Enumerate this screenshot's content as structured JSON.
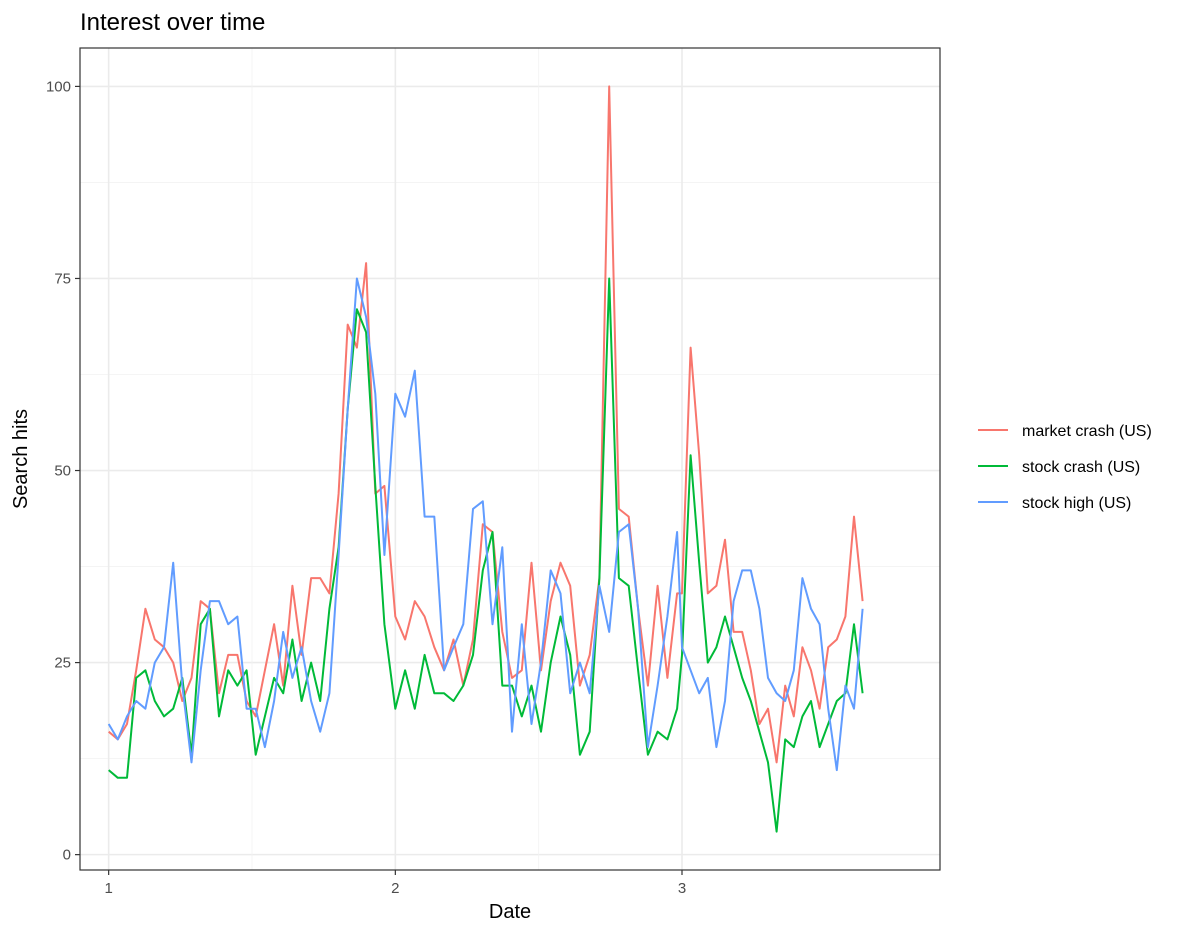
{
  "chart_data": {
    "type": "line",
    "title": "Interest over time",
    "xlabel": "Date",
    "ylabel": "Search hits",
    "xlim": [
      0.9,
      3.9
    ],
    "ylim": [
      -2,
      105
    ],
    "x_ticks": [
      1,
      2,
      3
    ],
    "y_ticks": [
      0,
      25,
      50,
      75,
      100
    ],
    "x_tick_labels": [
      "1",
      "2",
      "3"
    ],
    "y_tick_labels": [
      "0",
      "25",
      "50",
      "75",
      "100"
    ],
    "grid": true,
    "legend_position": "right",
    "series": [
      {
        "name": "market crash (US)",
        "color": "#F8766D",
        "points": [
          [
            1.0,
            16
          ],
          [
            1.032,
            15
          ],
          [
            1.064,
            17
          ],
          [
            1.096,
            24
          ],
          [
            1.128,
            32
          ],
          [
            1.161,
            28
          ],
          [
            1.193,
            27
          ],
          [
            1.225,
            25
          ],
          [
            1.257,
            20
          ],
          [
            1.289,
            23
          ],
          [
            1.321,
            33
          ],
          [
            1.353,
            32
          ],
          [
            1.385,
            21
          ],
          [
            1.417,
            26
          ],
          [
            1.449,
            26
          ],
          [
            1.481,
            20
          ],
          [
            1.513,
            18
          ],
          [
            1.545,
            24
          ],
          [
            1.577,
            30
          ],
          [
            1.609,
            22
          ],
          [
            1.641,
            35
          ],
          [
            1.673,
            26
          ],
          [
            1.706,
            36
          ],
          [
            1.738,
            36
          ],
          [
            1.77,
            34
          ],
          [
            1.802,
            47
          ],
          [
            1.834,
            69
          ],
          [
            1.866,
            66
          ],
          [
            1.898,
            77
          ],
          [
            1.93,
            47
          ],
          [
            1.962,
            48
          ],
          [
            2.0,
            31
          ],
          [
            2.034,
            28
          ],
          [
            2.068,
            33
          ],
          [
            2.102,
            31
          ],
          [
            2.136,
            27
          ],
          [
            2.17,
            24
          ],
          [
            2.203,
            28
          ],
          [
            2.237,
            22
          ],
          [
            2.271,
            28
          ],
          [
            2.305,
            43
          ],
          [
            2.339,
            42
          ],
          [
            2.373,
            29
          ],
          [
            2.407,
            23
          ],
          [
            2.441,
            24
          ],
          [
            2.475,
            38
          ],
          [
            2.508,
            24
          ],
          [
            2.542,
            33
          ],
          [
            2.576,
            38
          ],
          [
            2.61,
            35
          ],
          [
            2.644,
            22
          ],
          [
            2.678,
            26
          ],
          [
            2.712,
            36
          ],
          [
            2.746,
            100
          ],
          [
            2.78,
            45
          ],
          [
            2.814,
            44
          ],
          [
            2.847,
            32
          ],
          [
            2.881,
            22
          ],
          [
            2.915,
            35
          ],
          [
            2.949,
            23
          ],
          [
            2.983,
            34
          ],
          [
            3.0,
            34
          ],
          [
            3.03,
            66
          ],
          [
            3.06,
            52
          ],
          [
            3.09,
            34
          ],
          [
            3.12,
            35
          ],
          [
            3.15,
            41
          ],
          [
            3.18,
            29
          ],
          [
            3.21,
            29
          ],
          [
            3.24,
            24
          ],
          [
            3.27,
            17
          ],
          [
            3.3,
            19
          ],
          [
            3.33,
            12
          ],
          [
            3.36,
            22
          ],
          [
            3.39,
            18
          ],
          [
            3.42,
            27
          ],
          [
            3.45,
            24
          ],
          [
            3.48,
            19
          ],
          [
            3.51,
            27
          ],
          [
            3.54,
            28
          ],
          [
            3.57,
            31
          ],
          [
            3.6,
            44
          ],
          [
            3.63,
            33
          ]
        ]
      },
      {
        "name": "stock crash (US)",
        "color": "#00BA38",
        "points": [
          [
            1.0,
            11
          ],
          [
            1.032,
            10
          ],
          [
            1.064,
            10
          ],
          [
            1.096,
            23
          ],
          [
            1.128,
            24
          ],
          [
            1.161,
            20
          ],
          [
            1.193,
            18
          ],
          [
            1.225,
            19
          ],
          [
            1.257,
            23
          ],
          [
            1.289,
            13
          ],
          [
            1.321,
            30
          ],
          [
            1.353,
            32
          ],
          [
            1.385,
            18
          ],
          [
            1.417,
            24
          ],
          [
            1.449,
            22
          ],
          [
            1.481,
            24
          ],
          [
            1.513,
            13
          ],
          [
            1.545,
            18
          ],
          [
            1.577,
            23
          ],
          [
            1.609,
            21
          ],
          [
            1.641,
            28
          ],
          [
            1.673,
            20
          ],
          [
            1.706,
            25
          ],
          [
            1.738,
            20
          ],
          [
            1.77,
            32
          ],
          [
            1.802,
            40
          ],
          [
            1.834,
            58
          ],
          [
            1.866,
            71
          ],
          [
            1.898,
            68
          ],
          [
            1.93,
            48
          ],
          [
            1.962,
            30
          ],
          [
            2.0,
            19
          ],
          [
            2.034,
            24
          ],
          [
            2.068,
            19
          ],
          [
            2.102,
            26
          ],
          [
            2.136,
            21
          ],
          [
            2.17,
            21
          ],
          [
            2.203,
            20
          ],
          [
            2.237,
            22
          ],
          [
            2.271,
            26
          ],
          [
            2.305,
            37
          ],
          [
            2.339,
            42
          ],
          [
            2.373,
            22
          ],
          [
            2.407,
            22
          ],
          [
            2.441,
            18
          ],
          [
            2.475,
            22
          ],
          [
            2.508,
            16
          ],
          [
            2.542,
            25
          ],
          [
            2.576,
            31
          ],
          [
            2.61,
            26
          ],
          [
            2.644,
            13
          ],
          [
            2.678,
            16
          ],
          [
            2.712,
            36
          ],
          [
            2.746,
            75
          ],
          [
            2.78,
            36
          ],
          [
            2.814,
            35
          ],
          [
            2.847,
            24
          ],
          [
            2.881,
            13
          ],
          [
            2.915,
            16
          ],
          [
            2.949,
            15
          ],
          [
            2.983,
            19
          ],
          [
            3.0,
            26
          ],
          [
            3.03,
            52
          ],
          [
            3.06,
            38
          ],
          [
            3.09,
            25
          ],
          [
            3.12,
            27
          ],
          [
            3.15,
            31
          ],
          [
            3.18,
            27
          ],
          [
            3.21,
            23
          ],
          [
            3.24,
            20
          ],
          [
            3.27,
            16
          ],
          [
            3.3,
            12
          ],
          [
            3.33,
            3
          ],
          [
            3.36,
            15
          ],
          [
            3.39,
            14
          ],
          [
            3.42,
            18
          ],
          [
            3.45,
            20
          ],
          [
            3.48,
            14
          ],
          [
            3.51,
            17
          ],
          [
            3.54,
            20
          ],
          [
            3.57,
            21
          ],
          [
            3.6,
            30
          ],
          [
            3.63,
            21
          ]
        ]
      },
      {
        "name": "stock high (US)",
        "color": "#619CFF",
        "points": [
          [
            1.0,
            17
          ],
          [
            1.032,
            15
          ],
          [
            1.064,
            18
          ],
          [
            1.096,
            20
          ],
          [
            1.128,
            19
          ],
          [
            1.161,
            25
          ],
          [
            1.193,
            27
          ],
          [
            1.225,
            38
          ],
          [
            1.257,
            22
          ],
          [
            1.289,
            12
          ],
          [
            1.321,
            24
          ],
          [
            1.353,
            33
          ],
          [
            1.385,
            33
          ],
          [
            1.417,
            30
          ],
          [
            1.449,
            31
          ],
          [
            1.481,
            19
          ],
          [
            1.513,
            19
          ],
          [
            1.545,
            14
          ],
          [
            1.577,
            20
          ],
          [
            1.609,
            29
          ],
          [
            1.641,
            23
          ],
          [
            1.673,
            27
          ],
          [
            1.706,
            20
          ],
          [
            1.738,
            16
          ],
          [
            1.77,
            21
          ],
          [
            1.802,
            39
          ],
          [
            1.834,
            58
          ],
          [
            1.866,
            75
          ],
          [
            1.898,
            70
          ],
          [
            1.93,
            60
          ],
          [
            1.962,
            39
          ],
          [
            2.0,
            60
          ],
          [
            2.034,
            57
          ],
          [
            2.068,
            63
          ],
          [
            2.102,
            44
          ],
          [
            2.136,
            44
          ],
          [
            2.17,
            24
          ],
          [
            2.203,
            27
          ],
          [
            2.237,
            30
          ],
          [
            2.271,
            45
          ],
          [
            2.305,
            46
          ],
          [
            2.339,
            30
          ],
          [
            2.373,
            40
          ],
          [
            2.407,
            16
          ],
          [
            2.441,
            30
          ],
          [
            2.475,
            17
          ],
          [
            2.508,
            25
          ],
          [
            2.542,
            37
          ],
          [
            2.576,
            34
          ],
          [
            2.61,
            21
          ],
          [
            2.644,
            25
          ],
          [
            2.678,
            21
          ],
          [
            2.712,
            35
          ],
          [
            2.746,
            29
          ],
          [
            2.78,
            42
          ],
          [
            2.814,
            43
          ],
          [
            2.847,
            32
          ],
          [
            2.881,
            14
          ],
          [
            2.915,
            22
          ],
          [
            2.949,
            31
          ],
          [
            2.983,
            42
          ],
          [
            3.0,
            27
          ],
          [
            3.03,
            24
          ],
          [
            3.06,
            21
          ],
          [
            3.09,
            23
          ],
          [
            3.12,
            14
          ],
          [
            3.15,
            20
          ],
          [
            3.18,
            33
          ],
          [
            3.21,
            37
          ],
          [
            3.24,
            37
          ],
          [
            3.27,
            32
          ],
          [
            3.3,
            23
          ],
          [
            3.33,
            21
          ],
          [
            3.36,
            20
          ],
          [
            3.39,
            24
          ],
          [
            3.42,
            36
          ],
          [
            3.45,
            32
          ],
          [
            3.48,
            30
          ],
          [
            3.51,
            19
          ],
          [
            3.54,
            11
          ],
          [
            3.57,
            22
          ],
          [
            3.6,
            19
          ],
          [
            3.63,
            32
          ]
        ]
      }
    ]
  }
}
